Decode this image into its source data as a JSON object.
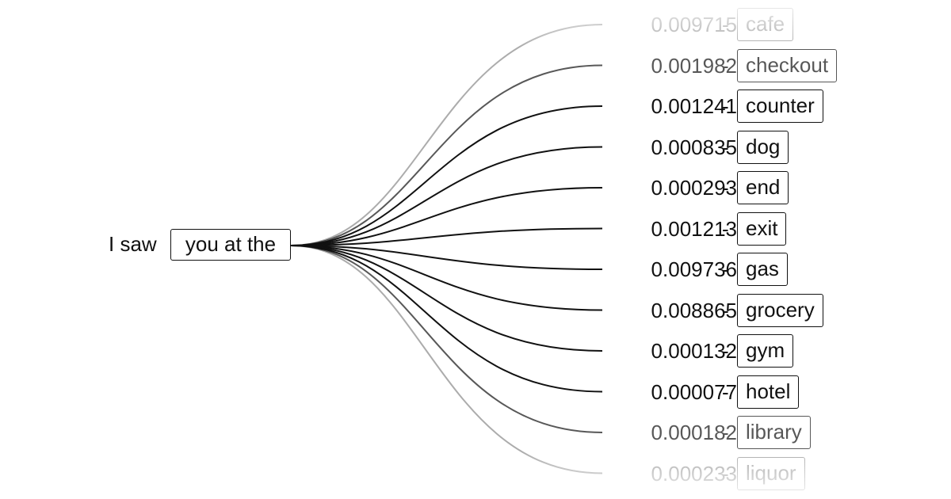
{
  "prefix": {
    "plain": "I saw",
    "boxed": "you at the"
  },
  "separator": "-",
  "leaves": [
    {
      "prob": "0.009715",
      "word": "cafe",
      "opacity": 0.35
    },
    {
      "prob": "0.001982",
      "word": "checkout",
      "opacity": 0.7
    },
    {
      "prob": "0.001241",
      "word": "counter",
      "opacity": 1
    },
    {
      "prob": "0.000835",
      "word": "dog",
      "opacity": 1
    },
    {
      "prob": "0.000293",
      "word": "end",
      "opacity": 1
    },
    {
      "prob": "0.001213",
      "word": "exit",
      "opacity": 1
    },
    {
      "prob": "0.009736",
      "word": "gas",
      "opacity": 1
    },
    {
      "prob": "0.008865",
      "word": "grocery",
      "opacity": 1
    },
    {
      "prob": "0.000132",
      "word": "gym",
      "opacity": 1
    },
    {
      "prob": "0.000077",
      "word": "hotel",
      "opacity": 1
    },
    {
      "prob": "0.000182",
      "word": "library",
      "opacity": 0.7
    },
    {
      "prob": "0.000233",
      "word": "liquor",
      "opacity": 0.35
    }
  ],
  "colors": {
    "ink": "#111111"
  }
}
